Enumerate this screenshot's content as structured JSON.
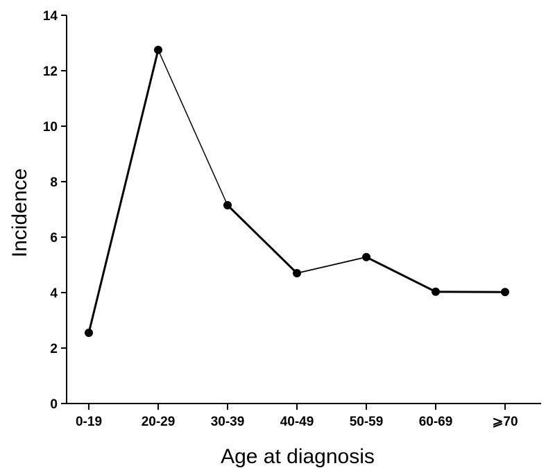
{
  "chart_data": {
    "type": "line",
    "xlabel": "Age at diagnosis",
    "ylabel": "Incidence",
    "categories": [
      "0-19",
      "20-29",
      "30-39",
      "40-49",
      "50-59",
      "60-69",
      "⩾70"
    ],
    "values": [
      2.55,
      12.75,
      7.15,
      4.7,
      5.28,
      4.03,
      4.02
    ],
    "ylim": [
      0,
      14
    ],
    "yticks": [
      0,
      2,
      4,
      6,
      8,
      10,
      12,
      14
    ],
    "grid": false,
    "legend": "none",
    "line_color": "#000000",
    "marker_color": "#000000"
  }
}
